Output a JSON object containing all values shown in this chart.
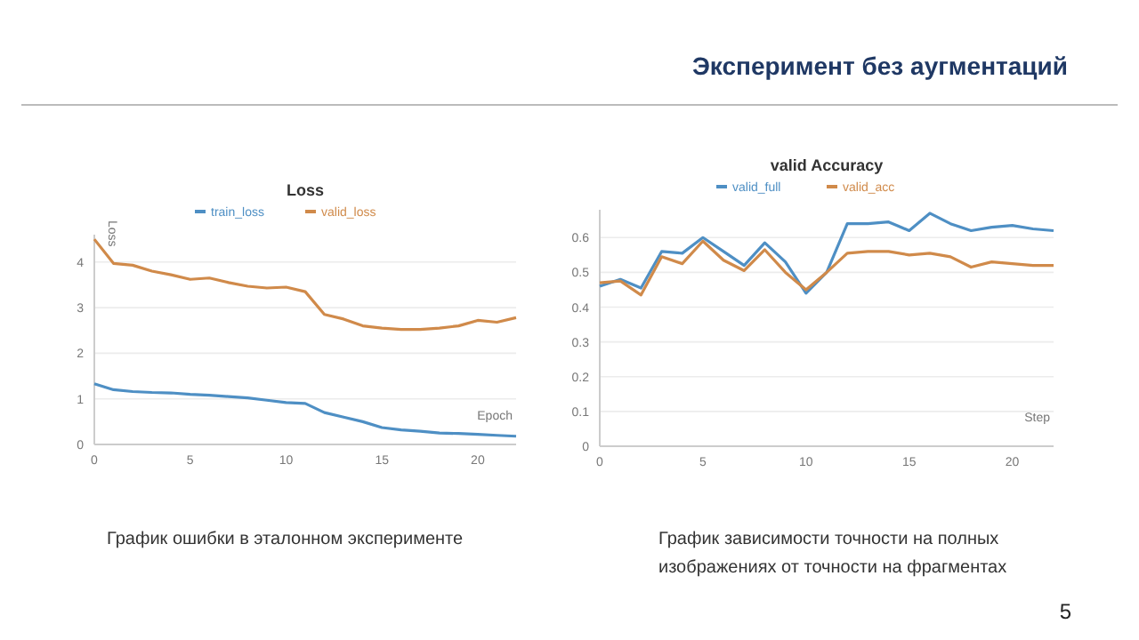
{
  "chart_data": [
    {
      "type": "other",
      "title": "Эксперимент без аугментаций",
      "annotations": [
        "5"
      ]
    },
    {
      "type": "line",
      "title": "Loss",
      "xlabel": "Epoch",
      "ylabel": "Loss",
      "x": [
        0,
        1,
        2,
        3,
        4,
        5,
        6,
        7,
        8,
        9,
        10,
        11,
        12,
        13,
        14,
        15,
        16,
        17,
        18,
        19,
        20,
        21,
        22
      ],
      "xlim": [
        0,
        22
      ],
      "xticks": [
        0,
        5,
        10,
        15,
        20
      ],
      "ylim": [
        0,
        4.6
      ],
      "yticks": [
        0,
        1,
        2,
        3,
        4
      ],
      "grid": "y",
      "legend": "top",
      "marker": "none",
      "line_style": "solid",
      "annotations": [
        "График ошибки в эталонном эксперименте"
      ],
      "series": [
        {
          "name": "train_loss",
          "color": "#4e8fc4",
          "values": [
            1.33,
            1.2,
            1.16,
            1.14,
            1.13,
            1.1,
            1.08,
            1.05,
            1.02,
            0.97,
            0.92,
            0.9,
            0.7,
            0.6,
            0.5,
            0.37,
            0.32,
            0.29,
            0.25,
            0.24,
            0.22,
            0.2,
            0.18
          ]
        },
        {
          "name": "valid_loss",
          "color": "#d08a4a",
          "values": [
            4.5,
            3.97,
            3.93,
            3.8,
            3.72,
            3.62,
            3.65,
            3.55,
            3.47,
            3.43,
            3.45,
            3.35,
            2.85,
            2.75,
            2.6,
            2.55,
            2.52,
            2.52,
            2.55,
            2.6,
            2.72,
            2.68,
            2.78
          ]
        }
      ]
    },
    {
      "type": "line",
      "title": "valid Accuracy",
      "xlabel": "Step",
      "x": [
        0,
        1,
        2,
        3,
        4,
        5,
        6,
        7,
        8,
        9,
        10,
        11,
        12,
        13,
        14,
        15,
        16,
        17,
        18,
        19,
        20,
        21,
        22
      ],
      "xlim": [
        0,
        22
      ],
      "xticks": [
        0,
        5,
        10,
        15,
        20
      ],
      "ylim": [
        0,
        0.68
      ],
      "yticks": [
        0,
        0.1,
        0.2,
        0.3,
        0.4,
        0.5,
        0.6
      ],
      "grid": "y",
      "legend": "top",
      "marker": "none",
      "line_style": "solid",
      "annotations": [
        "График зависимости точности на полных изображениях от точности на фрагментах"
      ],
      "series": [
        {
          "name": "valid_full",
          "color": "#4e8fc4",
          "values": [
            0.46,
            0.48,
            0.455,
            0.56,
            0.555,
            0.6,
            0.56,
            0.52,
            0.585,
            0.53,
            0.44,
            0.5,
            0.64,
            0.64,
            0.645,
            0.62,
            0.67,
            0.64,
            0.62,
            0.63,
            0.635,
            0.625,
            0.62
          ]
        },
        {
          "name": "valid_acc",
          "color": "#d08a4a",
          "values": [
            0.47,
            0.475,
            0.435,
            0.545,
            0.525,
            0.59,
            0.535,
            0.505,
            0.565,
            0.5,
            0.45,
            0.5,
            0.555,
            0.56,
            0.56,
            0.55,
            0.555,
            0.545,
            0.515,
            0.53,
            0.525,
            0.52,
            0.52
          ]
        }
      ]
    }
  ]
}
